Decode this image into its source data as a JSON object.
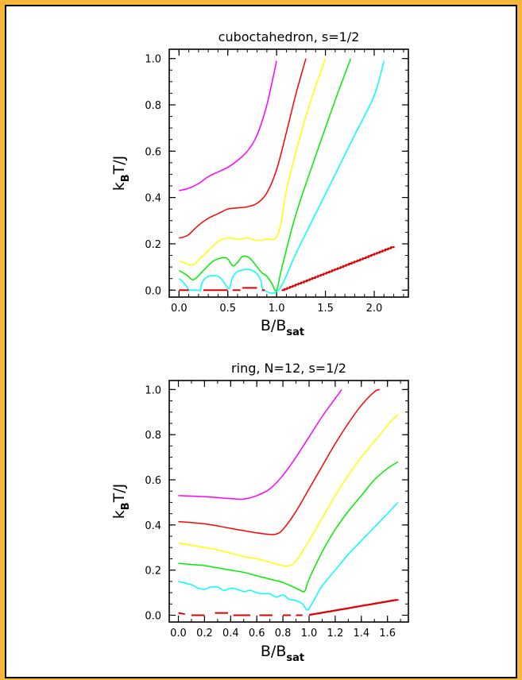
{
  "chart_data": [
    {
      "type": "line",
      "title": "cuboctahedron, s=1/2",
      "ylabel": {
        "main": "k",
        "sub": "B",
        "rest": "T/J"
      },
      "xlabel": {
        "main": "B/B",
        "sub": "sat"
      },
      "xlim": [
        -0.1,
        2.35
      ],
      "ylim": [
        -0.03,
        1.04
      ],
      "xticks": [
        0.0,
        0.5,
        1.0,
        1.5,
        2.0
      ],
      "xtick_labels": [
        "0.0",
        "0.5",
        "1.0",
        "1.5",
        "2.0"
      ],
      "xminor": 0.1,
      "yticks": [
        0.0,
        0.2,
        0.4,
        0.6,
        0.8,
        1.0
      ],
      "ytick_labels": [
        "0.0",
        "0.2",
        "0.4",
        "0.6",
        "0.8",
        "1.0"
      ],
      "yminor": 0.05,
      "series": [
        {
          "color": "#ff00ff",
          "x": [
            0,
            0.1,
            0.2,
            0.3,
            0.4,
            0.5,
            0.6,
            0.7,
            0.8,
            0.9,
            1.0
          ],
          "y": [
            0.43,
            0.44,
            0.46,
            0.49,
            0.51,
            0.53,
            0.56,
            0.6,
            0.67,
            0.8,
            0.99
          ]
        },
        {
          "color": "#ff0000",
          "x": [
            0,
            0.05,
            0.1,
            0.2,
            0.3,
            0.4,
            0.5,
            0.6,
            0.7,
            0.8,
            0.9,
            1.0,
            1.1,
            1.2,
            1.3
          ],
          "y": [
            0.225,
            0.23,
            0.24,
            0.28,
            0.31,
            0.33,
            0.35,
            0.355,
            0.36,
            0.375,
            0.42,
            0.52,
            0.68,
            0.85,
            1.0
          ]
        },
        {
          "color": "#ffff00",
          "x": [
            0,
            0.05,
            0.1,
            0.15,
            0.2,
            0.3,
            0.4,
            0.5,
            0.6,
            0.7,
            0.8,
            0.9,
            0.98,
            1.02,
            1.05,
            1.1,
            1.2,
            1.3,
            1.4,
            1.5
          ],
          "y": [
            0.125,
            0.12,
            0.11,
            0.11,
            0.13,
            0.17,
            0.21,
            0.225,
            0.22,
            0.225,
            0.215,
            0.22,
            0.22,
            0.25,
            0.3,
            0.43,
            0.6,
            0.75,
            0.88,
            1.0
          ]
        },
        {
          "color": "#00ee00",
          "x": [
            0,
            0.08,
            0.15,
            0.25,
            0.35,
            0.45,
            0.5,
            0.55,
            0.6,
            0.65,
            0.72,
            0.8,
            0.85,
            0.9,
            0.95,
            1.0,
            1.05,
            1.2,
            1.4,
            1.6,
            1.76
          ],
          "y": [
            0.085,
            0.065,
            0.045,
            0.085,
            0.125,
            0.14,
            0.135,
            0.105,
            0.12,
            0.145,
            0.14,
            0.1,
            0.075,
            0.06,
            0.03,
            0.0,
            0.09,
            0.33,
            0.58,
            0.82,
            1.0
          ]
        },
        {
          "color": "#00ffff",
          "x": [
            0,
            0.04,
            0.08,
            0.1,
            0.12,
            0.16,
            0.2,
            0.22,
            0.24,
            0.3,
            0.4,
            0.45,
            0.5,
            0.52,
            0.55,
            0.6,
            0.7,
            0.75,
            0.8,
            0.84,
            0.87,
            1.02,
            1.2,
            1.4,
            1.6,
            1.8,
            2.0,
            2.1
          ],
          "y": [
            0.05,
            0.035,
            0.015,
            0.0,
            0.0,
            0.0,
            0.0,
            0.0,
            0.035,
            0.06,
            0.06,
            0.04,
            0.01,
            0.01,
            0.055,
            0.08,
            0.09,
            0.085,
            0.07,
            0.04,
            0.0,
            0.0,
            0.16,
            0.33,
            0.5,
            0.67,
            0.84,
            0.99
          ]
        }
      ],
      "low_segments": {
        "color": "#dd0000",
        "segments": [
          [
            [
              0,
              0
            ],
            [
              0.1,
              0
            ]
          ],
          [
            [
              0.25,
              0
            ],
            [
              0.5,
              0
            ]
          ],
          [
            [
              0.55,
              0
            ],
            [
              0.63,
              0
            ]
          ],
          [
            [
              0.65,
              0.01
            ],
            [
              0.8,
              0.01
            ]
          ],
          [
            [
              0.85,
              0
            ],
            [
              0.88,
              0
            ]
          ]
        ],
        "ramp": [
          [
            1.05,
            0
          ],
          [
            2.2,
            0.19
          ]
        ]
      }
    },
    {
      "type": "line",
      "title": "ring, N=12, s=1/2",
      "ylabel": {
        "main": "k",
        "sub": "B",
        "rest": "T/J"
      },
      "xlabel": {
        "main": "B/B",
        "sub": "sat"
      },
      "xlim": [
        -0.07,
        1.76
      ],
      "ylim": [
        -0.03,
        1.04
      ],
      "xticks": [
        0.0,
        0.2,
        0.4,
        0.6,
        0.8,
        1.0,
        1.2,
        1.4,
        1.6
      ],
      "xtick_labels": [
        "0.0",
        "0.2",
        "0.4",
        "0.6",
        "0.8",
        "1.0",
        "1.2",
        "1.4",
        "1.6"
      ],
      "xminor": 0.1,
      "yticks": [
        0.0,
        0.2,
        0.4,
        0.6,
        0.8,
        1.0
      ],
      "ytick_labels": [
        "0.0",
        "0.2",
        "0.4",
        "0.6",
        "0.8",
        "1.0"
      ],
      "yminor": 0.05,
      "series": [
        {
          "color": "#ff00ff",
          "x": [
            0,
            0.2,
            0.4,
            0.5,
            0.6,
            0.7,
            0.8,
            0.9,
            1.0,
            1.1,
            1.2,
            1.25
          ],
          "y": [
            0.53,
            0.525,
            0.517,
            0.515,
            0.53,
            0.56,
            0.62,
            0.7,
            0.79,
            0.88,
            0.96,
            1.0
          ]
        },
        {
          "color": "#ff0000",
          "x": [
            0,
            0.2,
            0.4,
            0.6,
            0.7,
            0.75,
            0.8,
            0.9,
            1.0,
            1.1,
            1.2,
            1.3,
            1.4,
            1.5,
            1.54
          ],
          "y": [
            0.415,
            0.405,
            0.385,
            0.365,
            0.358,
            0.36,
            0.38,
            0.46,
            0.56,
            0.66,
            0.76,
            0.85,
            0.93,
            0.99,
            1.0
          ]
        },
        {
          "color": "#ffff00",
          "x": [
            0,
            0.1,
            0.2,
            0.3,
            0.4,
            0.5,
            0.6,
            0.7,
            0.8,
            0.85,
            0.9,
            1.0,
            1.1,
            1.2,
            1.3,
            1.4,
            1.5,
            1.6,
            1.68
          ],
          "y": [
            0.32,
            0.31,
            0.3,
            0.29,
            0.275,
            0.26,
            0.25,
            0.235,
            0.22,
            0.22,
            0.24,
            0.33,
            0.43,
            0.53,
            0.62,
            0.7,
            0.77,
            0.84,
            0.89
          ]
        },
        {
          "color": "#00ee00",
          "x": [
            0,
            0.1,
            0.2,
            0.3,
            0.4,
            0.5,
            0.6,
            0.7,
            0.8,
            0.9,
            0.95,
            0.97,
            1.0,
            1.1,
            1.2,
            1.3,
            1.4,
            1.5,
            1.6,
            1.68
          ],
          "y": [
            0.23,
            0.225,
            0.22,
            0.21,
            0.2,
            0.19,
            0.175,
            0.16,
            0.145,
            0.12,
            0.105,
            0.11,
            0.16,
            0.28,
            0.38,
            0.46,
            0.53,
            0.6,
            0.65,
            0.68
          ]
        },
        {
          "color": "#00ffff",
          "x": [
            0,
            0.1,
            0.15,
            0.2,
            0.25,
            0.3,
            0.35,
            0.4,
            0.45,
            0.5,
            0.55,
            0.6,
            0.65,
            0.7,
            0.75,
            0.8,
            0.85,
            0.9,
            0.95,
            0.98,
            1.0,
            1.05,
            1.1,
            1.2,
            1.3,
            1.4,
            1.5,
            1.6,
            1.68
          ],
          "y": [
            0.15,
            0.135,
            0.12,
            0.115,
            0.125,
            0.125,
            0.11,
            0.12,
            0.115,
            0.105,
            0.11,
            0.1,
            0.095,
            0.095,
            0.08,
            0.09,
            0.07,
            0.065,
            0.05,
            0.025,
            0.03,
            0.08,
            0.13,
            0.2,
            0.27,
            0.33,
            0.39,
            0.45,
            0.5
          ]
        }
      ],
      "low_segments": {
        "color": "#dd0000",
        "segments": [
          [
            [
              0,
              0.01
            ],
            [
              0.05,
              0.005
            ]
          ],
          [
            [
              0.1,
              0
            ],
            [
              0.2,
              0
            ]
          ],
          [
            [
              0.28,
              0.01
            ],
            [
              0.38,
              0.01
            ]
          ],
          [
            [
              0.42,
              0
            ],
            [
              0.55,
              0
            ]
          ],
          [
            [
              0.62,
              0
            ],
            [
              0.72,
              0
            ]
          ],
          [
            [
              0.8,
              0
            ],
            [
              0.86,
              0
            ]
          ],
          [
            [
              0.9,
              0
            ],
            [
              0.95,
              0
            ]
          ]
        ],
        "ramp": [
          [
            1.0,
            0.002
          ],
          [
            1.68,
            0.07
          ]
        ]
      }
    }
  ]
}
